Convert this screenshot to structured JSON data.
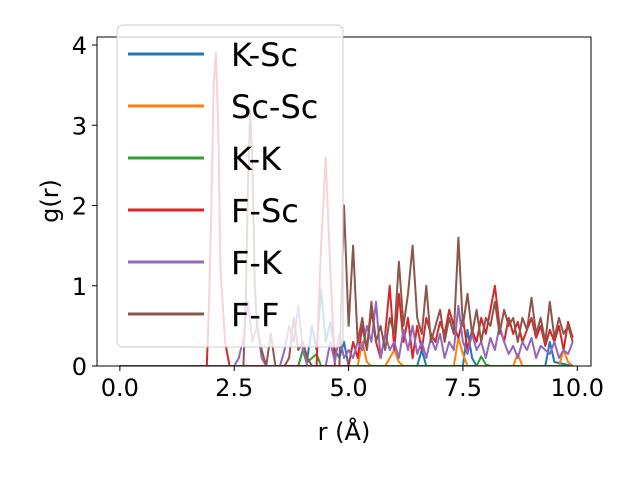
{
  "chart_data": {
    "type": "line",
    "title": "",
    "xlabel": "r (Å)",
    "ylabel": "g(r)",
    "xlim": [
      -0.5,
      10.3
    ],
    "ylim": [
      0,
      4.1
    ],
    "xticks": [
      0.0,
      2.5,
      5.0,
      7.5,
      10.0
    ],
    "xtick_labels": [
      "0.0",
      "2.5",
      "5.0",
      "7.5",
      "10.0"
    ],
    "yticks": [
      0,
      1,
      2,
      3,
      4
    ],
    "ytick_labels": [
      "0",
      "1",
      "2",
      "3",
      "4"
    ],
    "grid": false,
    "legend_position": "top-left",
    "series": [
      {
        "name": "K-Sc",
        "color": "#1f77b4",
        "x": [
          0,
          3.5,
          3.9,
          4.0,
          4.1,
          4.2,
          4.3,
          4.4,
          4.5,
          4.6,
          4.7,
          4.8,
          4.9,
          5.0,
          6.5,
          6.6,
          6.7,
          7.5,
          7.6,
          7.7,
          7.8,
          9.3,
          9.4,
          9.5,
          9.9
        ],
        "y": [
          0,
          0,
          0,
          0.2,
          0.1,
          0.5,
          0.2,
          0.95,
          0.3,
          0.55,
          0.2,
          0.1,
          0.3,
          0,
          0,
          0.2,
          0,
          0,
          0.45,
          0.1,
          0,
          0,
          0.3,
          0.05,
          0
        ]
      },
      {
        "name": "Sc-Sc",
        "color": "#ff7f0e",
        "x": [
          0,
          5.2,
          5.3,
          5.4,
          5.5,
          5.8,
          6.0,
          6.1,
          6.2,
          7.3,
          7.4,
          7.5,
          7.6,
          8.6,
          8.7,
          8.8,
          9.6,
          9.7,
          9.8,
          9.9
        ],
        "y": [
          0,
          0,
          0.3,
          0.05,
          0,
          0,
          0.2,
          0.05,
          0,
          0,
          0.35,
          0.15,
          0,
          0,
          0.15,
          0,
          0,
          0.2,
          0.05,
          0
        ]
      },
      {
        "name": "K-K",
        "color": "#2ca02c",
        "x": [
          0,
          3.9,
          4.0,
          4.1,
          4.2,
          4.3,
          4.4,
          5.0,
          7.8,
          7.9,
          8.0,
          8.1,
          9.9
        ],
        "y": [
          0,
          0,
          0.2,
          0.05,
          0.1,
          0.15,
          0,
          0,
          0,
          0.12,
          0.02,
          0,
          0
        ]
      },
      {
        "name": "F-Sc",
        "color": "#d62728",
        "x": [
          0,
          1.9,
          1.95,
          2.0,
          2.05,
          2.1,
          2.15,
          2.2,
          2.3,
          2.4,
          4.3,
          4.4,
          4.5,
          4.6,
          4.7,
          5.0,
          5.1,
          5.2,
          5.3,
          5.4,
          5.5,
          5.6,
          5.7,
          5.8,
          5.9,
          6.0,
          6.1,
          6.2,
          6.3,
          6.4,
          6.5,
          6.6,
          6.7,
          6.8,
          6.9,
          7.0,
          7.1,
          7.2,
          7.3,
          7.4,
          7.5,
          7.6,
          7.7,
          7.8,
          7.9,
          8.0,
          8.1,
          8.2,
          8.3,
          8.4,
          8.5,
          8.6,
          8.7,
          8.8,
          8.9,
          9.0,
          9.1,
          9.2,
          9.3,
          9.4,
          9.5,
          9.6,
          9.7,
          9.8,
          9.9
        ],
        "y": [
          0,
          0,
          0.8,
          2.0,
          3.5,
          3.9,
          3.0,
          1.2,
          0.3,
          0,
          0,
          1.5,
          2.6,
          1.2,
          0,
          0,
          0.3,
          0.1,
          0.5,
          0.2,
          0.7,
          0.3,
          0.1,
          0.4,
          1.0,
          0.2,
          0.9,
          0.3,
          0.6,
          0.1,
          0.5,
          0.2,
          0.6,
          0.4,
          0.3,
          0.55,
          0.4,
          0.7,
          0.5,
          0.35,
          0.6,
          0.2,
          0.45,
          0.3,
          0.6,
          0.4,
          0.7,
          1.0,
          0.5,
          0.3,
          0.6,
          0.4,
          0.55,
          0.3,
          0.45,
          0.6,
          0.35,
          0.5,
          0.25,
          0.45,
          0.3,
          0.5,
          0.2,
          0.55,
          0.35
        ]
      },
      {
        "name": "F-K",
        "color": "#9467bd",
        "x": [
          0,
          2.5,
          2.6,
          2.7,
          2.8,
          2.9,
          3.0,
          3.1,
          3.2,
          3.5,
          3.6,
          3.7,
          3.8,
          3.9,
          4.0,
          4.1,
          4.5,
          4.6,
          4.7,
          4.8,
          4.9,
          5.0,
          5.1,
          5.2,
          5.3,
          5.4,
          5.5,
          5.6,
          5.7,
          5.8,
          5.9,
          6.0,
          6.1,
          6.2,
          6.3,
          6.4,
          6.5,
          6.6,
          6.7,
          6.8,
          6.9,
          7.0,
          7.1,
          7.2,
          7.3,
          7.4,
          7.5,
          7.6,
          7.7,
          7.8,
          7.9,
          8.0,
          8.1,
          8.2,
          8.3,
          8.4,
          8.5,
          8.6,
          8.7,
          8.8,
          8.9,
          9.0,
          9.1,
          9.2,
          9.3,
          9.4,
          9.5,
          9.6,
          9.7,
          9.8,
          9.9
        ],
        "y": [
          0,
          0,
          0.1,
          0.35,
          0.8,
          0.3,
          0.5,
          0.1,
          0,
          0,
          0.2,
          0.5,
          0.3,
          0.75,
          0.2,
          0,
          0,
          0.3,
          0.05,
          0.4,
          0.1,
          0.2,
          0.1,
          0.3,
          0.2,
          0.5,
          0.3,
          0.8,
          0.1,
          0.4,
          0.2,
          0.3,
          0.1,
          0.45,
          0.2,
          0.5,
          0.15,
          0.3,
          0.1,
          0.35,
          0.2,
          0.4,
          0.1,
          0.3,
          0.2,
          0.75,
          0.3,
          0.15,
          0.4,
          0.2,
          0.3,
          0.1,
          0.35,
          0.2,
          0.5,
          0.3,
          0.15,
          0.25,
          0.1,
          0.3,
          0.2,
          0.35,
          0.1,
          0.25,
          0.2,
          0.15,
          0.3,
          0.1,
          0.2,
          0.15,
          0.3
        ]
      },
      {
        "name": "F-F",
        "color": "#8c564b",
        "x": [
          0,
          2.7,
          2.75,
          2.8,
          2.85,
          2.9,
          2.95,
          3.0,
          3.1,
          3.2,
          3.3,
          3.4,
          3.6,
          3.7,
          3.8,
          3.9,
          4.0,
          4.1,
          4.2,
          4.8,
          4.9,
          5.0,
          5.1,
          5.2,
          5.3,
          5.4,
          5.5,
          5.6,
          5.7,
          5.8,
          5.9,
          6.0,
          6.1,
          6.2,
          6.3,
          6.4,
          6.5,
          6.6,
          6.7,
          6.8,
          6.9,
          7.0,
          7.1,
          7.2,
          7.3,
          7.4,
          7.5,
          7.6,
          7.7,
          7.8,
          7.9,
          8.0,
          8.1,
          8.2,
          8.3,
          8.4,
          8.5,
          8.6,
          8.7,
          8.8,
          8.9,
          9.0,
          9.1,
          9.2,
          9.3,
          9.4,
          9.5,
          9.6,
          9.7,
          9.8,
          9.9
        ],
        "y": [
          0,
          0,
          0.8,
          2.2,
          3.2,
          2.5,
          1.0,
          0.5,
          0.2,
          0,
          0.4,
          0,
          0,
          0.1,
          0.6,
          0.2,
          0.3,
          0.1,
          0,
          0,
          2.0,
          0.5,
          1.5,
          0.3,
          0.6,
          0.2,
          0.8,
          0.3,
          0.5,
          0.2,
          0.6,
          0.4,
          1.3,
          0.5,
          0.9,
          1.5,
          0.6,
          0.4,
          1.0,
          0.3,
          0.5,
          0.7,
          0.3,
          0.6,
          0.4,
          1.6,
          0.5,
          0.9,
          0.4,
          0.7,
          0.3,
          0.6,
          0.5,
          0.8,
          0.4,
          0.7,
          0.5,
          0.6,
          0.3,
          0.6,
          0.45,
          0.85,
          0.4,
          0.6,
          0.3,
          0.8,
          0.35,
          0.6,
          0.4,
          0.5,
          0.3
        ]
      }
    ]
  }
}
